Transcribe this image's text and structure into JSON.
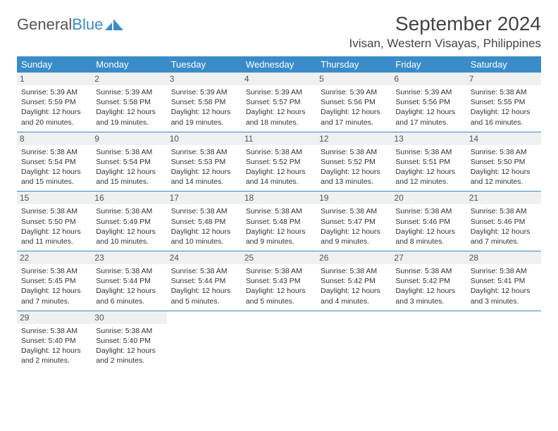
{
  "brand": {
    "part1": "General",
    "part2": "Blue",
    "text_color": "#555555",
    "accent_color": "#3a8cc9"
  },
  "title": "September 2024",
  "location": "Ivisan, Western Visayas, Philippines",
  "colors": {
    "header_bg": "#3a8cc9",
    "header_text": "#ffffff",
    "daynum_bg": "#eef0f1",
    "border": "#3a8cc9",
    "text": "#333333"
  },
  "day_names": [
    "Sunday",
    "Monday",
    "Tuesday",
    "Wednesday",
    "Thursday",
    "Friday",
    "Saturday"
  ],
  "days": [
    {
      "n": "1",
      "sr": "Sunrise: 5:39 AM",
      "ss": "Sunset: 5:59 PM",
      "d1": "Daylight: 12 hours",
      "d2": "and 20 minutes."
    },
    {
      "n": "2",
      "sr": "Sunrise: 5:39 AM",
      "ss": "Sunset: 5:58 PM",
      "d1": "Daylight: 12 hours",
      "d2": "and 19 minutes."
    },
    {
      "n": "3",
      "sr": "Sunrise: 5:39 AM",
      "ss": "Sunset: 5:58 PM",
      "d1": "Daylight: 12 hours",
      "d2": "and 19 minutes."
    },
    {
      "n": "4",
      "sr": "Sunrise: 5:39 AM",
      "ss": "Sunset: 5:57 PM",
      "d1": "Daylight: 12 hours",
      "d2": "and 18 minutes."
    },
    {
      "n": "5",
      "sr": "Sunrise: 5:39 AM",
      "ss": "Sunset: 5:56 PM",
      "d1": "Daylight: 12 hours",
      "d2": "and 17 minutes."
    },
    {
      "n": "6",
      "sr": "Sunrise: 5:39 AM",
      "ss": "Sunset: 5:56 PM",
      "d1": "Daylight: 12 hours",
      "d2": "and 17 minutes."
    },
    {
      "n": "7",
      "sr": "Sunrise: 5:38 AM",
      "ss": "Sunset: 5:55 PM",
      "d1": "Daylight: 12 hours",
      "d2": "and 16 minutes."
    },
    {
      "n": "8",
      "sr": "Sunrise: 5:38 AM",
      "ss": "Sunset: 5:54 PM",
      "d1": "Daylight: 12 hours",
      "d2": "and 15 minutes."
    },
    {
      "n": "9",
      "sr": "Sunrise: 5:38 AM",
      "ss": "Sunset: 5:54 PM",
      "d1": "Daylight: 12 hours",
      "d2": "and 15 minutes."
    },
    {
      "n": "10",
      "sr": "Sunrise: 5:38 AM",
      "ss": "Sunset: 5:53 PM",
      "d1": "Daylight: 12 hours",
      "d2": "and 14 minutes."
    },
    {
      "n": "11",
      "sr": "Sunrise: 5:38 AM",
      "ss": "Sunset: 5:52 PM",
      "d1": "Daylight: 12 hours",
      "d2": "and 14 minutes."
    },
    {
      "n": "12",
      "sr": "Sunrise: 5:38 AM",
      "ss": "Sunset: 5:52 PM",
      "d1": "Daylight: 12 hours",
      "d2": "and 13 minutes."
    },
    {
      "n": "13",
      "sr": "Sunrise: 5:38 AM",
      "ss": "Sunset: 5:51 PM",
      "d1": "Daylight: 12 hours",
      "d2": "and 12 minutes."
    },
    {
      "n": "14",
      "sr": "Sunrise: 5:38 AM",
      "ss": "Sunset: 5:50 PM",
      "d1": "Daylight: 12 hours",
      "d2": "and 12 minutes."
    },
    {
      "n": "15",
      "sr": "Sunrise: 5:38 AM",
      "ss": "Sunset: 5:50 PM",
      "d1": "Daylight: 12 hours",
      "d2": "and 11 minutes."
    },
    {
      "n": "16",
      "sr": "Sunrise: 5:38 AM",
      "ss": "Sunset: 5:49 PM",
      "d1": "Daylight: 12 hours",
      "d2": "and 10 minutes."
    },
    {
      "n": "17",
      "sr": "Sunrise: 5:38 AM",
      "ss": "Sunset: 5:48 PM",
      "d1": "Daylight: 12 hours",
      "d2": "and 10 minutes."
    },
    {
      "n": "18",
      "sr": "Sunrise: 5:38 AM",
      "ss": "Sunset: 5:48 PM",
      "d1": "Daylight: 12 hours",
      "d2": "and 9 minutes."
    },
    {
      "n": "19",
      "sr": "Sunrise: 5:38 AM",
      "ss": "Sunset: 5:47 PM",
      "d1": "Daylight: 12 hours",
      "d2": "and 9 minutes."
    },
    {
      "n": "20",
      "sr": "Sunrise: 5:38 AM",
      "ss": "Sunset: 5:46 PM",
      "d1": "Daylight: 12 hours",
      "d2": "and 8 minutes."
    },
    {
      "n": "21",
      "sr": "Sunrise: 5:38 AM",
      "ss": "Sunset: 5:46 PM",
      "d1": "Daylight: 12 hours",
      "d2": "and 7 minutes."
    },
    {
      "n": "22",
      "sr": "Sunrise: 5:38 AM",
      "ss": "Sunset: 5:45 PM",
      "d1": "Daylight: 12 hours",
      "d2": "and 7 minutes."
    },
    {
      "n": "23",
      "sr": "Sunrise: 5:38 AM",
      "ss": "Sunset: 5:44 PM",
      "d1": "Daylight: 12 hours",
      "d2": "and 6 minutes."
    },
    {
      "n": "24",
      "sr": "Sunrise: 5:38 AM",
      "ss": "Sunset: 5:44 PM",
      "d1": "Daylight: 12 hours",
      "d2": "and 5 minutes."
    },
    {
      "n": "25",
      "sr": "Sunrise: 5:38 AM",
      "ss": "Sunset: 5:43 PM",
      "d1": "Daylight: 12 hours",
      "d2": "and 5 minutes."
    },
    {
      "n": "26",
      "sr": "Sunrise: 5:38 AM",
      "ss": "Sunset: 5:42 PM",
      "d1": "Daylight: 12 hours",
      "d2": "and 4 minutes."
    },
    {
      "n": "27",
      "sr": "Sunrise: 5:38 AM",
      "ss": "Sunset: 5:42 PM",
      "d1": "Daylight: 12 hours",
      "d2": "and 3 minutes."
    },
    {
      "n": "28",
      "sr": "Sunrise: 5:38 AM",
      "ss": "Sunset: 5:41 PM",
      "d1": "Daylight: 12 hours",
      "d2": "and 3 minutes."
    },
    {
      "n": "29",
      "sr": "Sunrise: 5:38 AM",
      "ss": "Sunset: 5:40 PM",
      "d1": "Daylight: 12 hours",
      "d2": "and 2 minutes."
    },
    {
      "n": "30",
      "sr": "Sunrise: 5:38 AM",
      "ss": "Sunset: 5:40 PM",
      "d1": "Daylight: 12 hours",
      "d2": "and 2 minutes."
    }
  ]
}
